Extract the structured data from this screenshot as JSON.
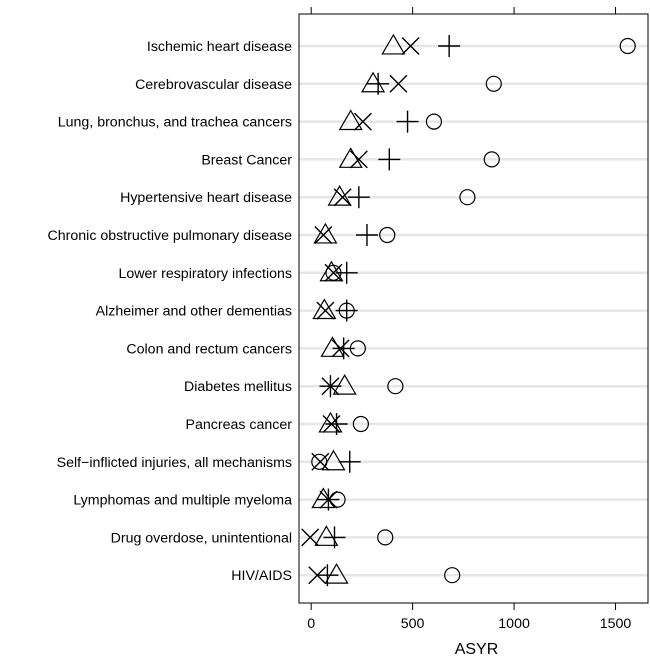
{
  "chart_data": {
    "type": "scatter",
    "title": "",
    "xlabel": "ASYR",
    "ylabel": "",
    "xlim": [
      -60,
      1660
    ],
    "xticks": [
      0,
      500,
      1000,
      1500
    ],
    "xtick_labels": [
      "0",
      "500",
      "1000",
      "1500"
    ],
    "grid": "horizontal",
    "legend": "none",
    "categories": [
      "Ischemic heart disease",
      "Cerebrovascular disease",
      "Lung, bronchus, and trachea cancers",
      "Breast Cancer",
      "Hypertensive heart disease",
      "Chronic obstructive pulmonary disease",
      "Lower respiratory infections",
      "Alzheimer and other dementias",
      "Colon and rectum cancers",
      "Diabetes mellitus",
      "Pancreas cancer",
      "Self−inflicted injuries, all mechanisms",
      "Lymphomas and multiple myeloma",
      "Drug overdose, unintentional",
      "HIV/AIDS"
    ],
    "series": [
      {
        "marker": "triangle",
        "values": [
          405,
          305,
          195,
          195,
          140,
          70,
          100,
          65,
          105,
          165,
          95,
          110,
          60,
          75,
          125
        ]
      },
      {
        "marker": "cross",
        "values": [
          490,
          430,
          255,
          235,
          155,
          60,
          110,
          70,
          145,
          95,
          100,
          45,
          85,
          -5,
          30
        ]
      },
      {
        "marker": "plus",
        "values": [
          680,
          330,
          475,
          385,
          235,
          275,
          175,
          175,
          160,
          95,
          125,
          190,
          85,
          115,
          80
        ]
      },
      {
        "marker": "circle",
        "values": [
          1560,
          900,
          605,
          890,
          770,
          375,
          110,
          175,
          230,
          415,
          245,
          40,
          130,
          365,
          695
        ]
      }
    ],
    "colors": {
      "markers": "#000000",
      "grid": "#e6e6e6",
      "axis": "#000000"
    }
  }
}
